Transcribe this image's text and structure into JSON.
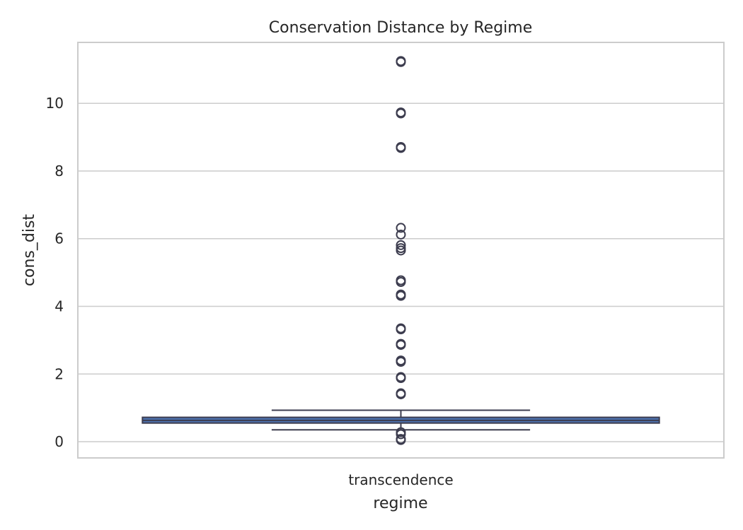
{
  "chart_data": {
    "type": "box",
    "title": "Conservation Distance by Regime",
    "xlabel": "regime",
    "ylabel": "cons_dist",
    "categories": [
      "transcendence"
    ],
    "ylim": [
      -0.48,
      11.8
    ],
    "yticks": [
      0,
      2,
      4,
      6,
      8,
      10
    ],
    "grid": true,
    "boxes": [
      {
        "category": "transcendence",
        "whisker_low": 0.35,
        "q1": 0.55,
        "median": 0.63,
        "q3": 0.72,
        "whisker_high": 0.93,
        "fliers": [
          0.05,
          0.08,
          0.22,
          0.28,
          1.4,
          1.43,
          1.88,
          1.91,
          2.36,
          2.4,
          2.86,
          2.89,
          3.32,
          3.35,
          4.31,
          4.35,
          4.72,
          4.77,
          5.65,
          5.72,
          5.81,
          6.12,
          6.32,
          8.68,
          8.71,
          9.7,
          9.73,
          11.22,
          11.25
        ]
      }
    ],
    "colors": {
      "box_fill": "#4c72b0",
      "line": "#3d3d4f",
      "grid": "#cccccc"
    }
  }
}
